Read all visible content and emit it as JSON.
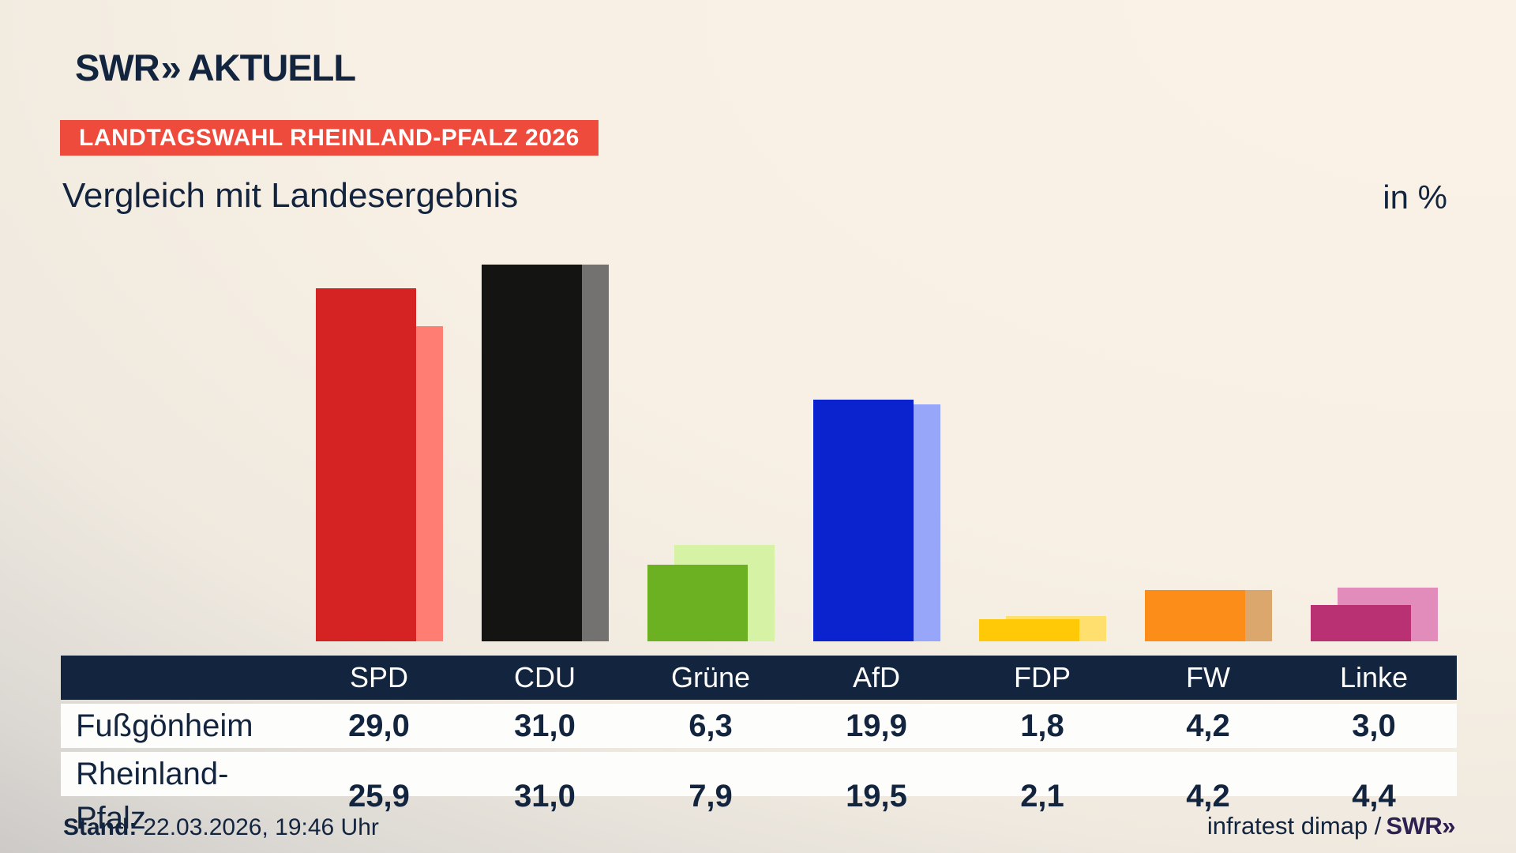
{
  "logo": {
    "brand": "SWR",
    "chevron": "»",
    "product": "AKTUELL"
  },
  "header": {
    "badge": "LANDTAGSWAHL RHEINLAND-PFALZ 2026",
    "title": "Vergleich mit Landesergebnis",
    "unit": "in %"
  },
  "chart_data": {
    "type": "bar",
    "title": "Vergleich mit Landesergebnis",
    "unit_label": "in %",
    "categories": [
      "SPD",
      "CDU",
      "Grüne",
      "AfD",
      "FDP",
      "FW",
      "Linke"
    ],
    "series": [
      {
        "name": "Fußgönheim",
        "values": [
          29.0,
          31.0,
          6.3,
          19.9,
          1.8,
          4.2,
          3.0
        ]
      },
      {
        "name": "Rheinland-Pfalz",
        "values": [
          25.9,
          31.0,
          7.9,
          19.5,
          2.1,
          4.2,
          4.4
        ]
      }
    ],
    "colors": {
      "main": [
        "#d42322",
        "#141413",
        "#6cb121",
        "#0b22cf",
        "#ffc907",
        "#fb8d18",
        "#ba3173"
      ],
      "light": [
        "#ff7d72",
        "#747271",
        "#d5f2a5",
        "#97a6f8",
        "#ffe06e",
        "#dca76c",
        "#e18cbb"
      ]
    },
    "ylim": [
      0,
      33
    ],
    "grid": false,
    "value_axis_hidden": true,
    "legend_position": "table-below",
    "orientation": "vertical-grouped-overlap"
  },
  "table": {
    "rows": [
      {
        "label": "Fußgönheim",
        "values": [
          "29,0",
          "31,0",
          "6,3",
          "19,9",
          "1,8",
          "4,2",
          "3,0"
        ]
      },
      {
        "label": "Rheinland-Pfalz",
        "values": [
          "25,9",
          "31,0",
          "7,9",
          "19,5",
          "2,1",
          "4,2",
          "4,4"
        ]
      }
    ]
  },
  "footer": {
    "stand_label": "Stand:",
    "stand_value": "22.03.2026, 19:46 Uhr",
    "source": "infratest dimap /",
    "source_brand": "SWR»"
  }
}
